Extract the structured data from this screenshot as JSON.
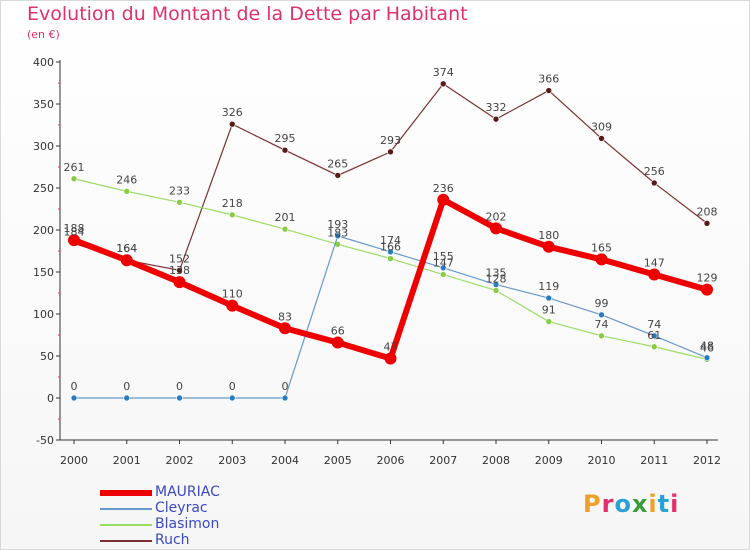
{
  "title": "Evolution du Montant de la Dette par Habitant",
  "subtitle": "(en €)",
  "logo": {
    "text": "Proxiti",
    "colors": [
      "#f0a02a",
      "#e0316c",
      "#2aa0d8",
      "#3c9c3c",
      "#f0a02a",
      "#2aa0d8",
      "#e0316c"
    ]
  },
  "chart_data": {
    "type": "line",
    "title": "Evolution du Montant de la Dette par Habitant",
    "subtitle": "(en €)",
    "x": [
      "2000",
      "2001",
      "2002",
      "2003",
      "2004",
      "2005",
      "2006",
      "2007",
      "2008",
      "2009",
      "2010",
      "2011",
      "2012"
    ],
    "ylim": [
      -50,
      400
    ],
    "yticks": [
      -50,
      0,
      50,
      100,
      150,
      200,
      250,
      300,
      350,
      400
    ],
    "grid": false,
    "legend_position": "bottom-left",
    "series": [
      {
        "name": "MAURIAC",
        "color": "#ee0000",
        "values": [
          188,
          164,
          138,
          110,
          83,
          66,
          47,
          236,
          202,
          180,
          165,
          147,
          129
        ]
      },
      {
        "name": "Cleyrac",
        "color": "#6699cc",
        "values": [
          0,
          0,
          0,
          0,
          0,
          193,
          174,
          155,
          135,
          119,
          99,
          74,
          48
        ]
      },
      {
        "name": "Blasimon",
        "color": "#99dd66",
        "values": [
          261,
          246,
          233,
          218,
          201,
          183,
          166,
          147,
          128,
          91,
          74,
          61,
          46
        ]
      },
      {
        "name": "Ruch",
        "color": "#7a3030",
        "values": [
          184,
          164,
          152,
          326,
          295,
          265,
          293,
          374,
          332,
          366,
          309,
          256,
          208
        ]
      }
    ]
  }
}
